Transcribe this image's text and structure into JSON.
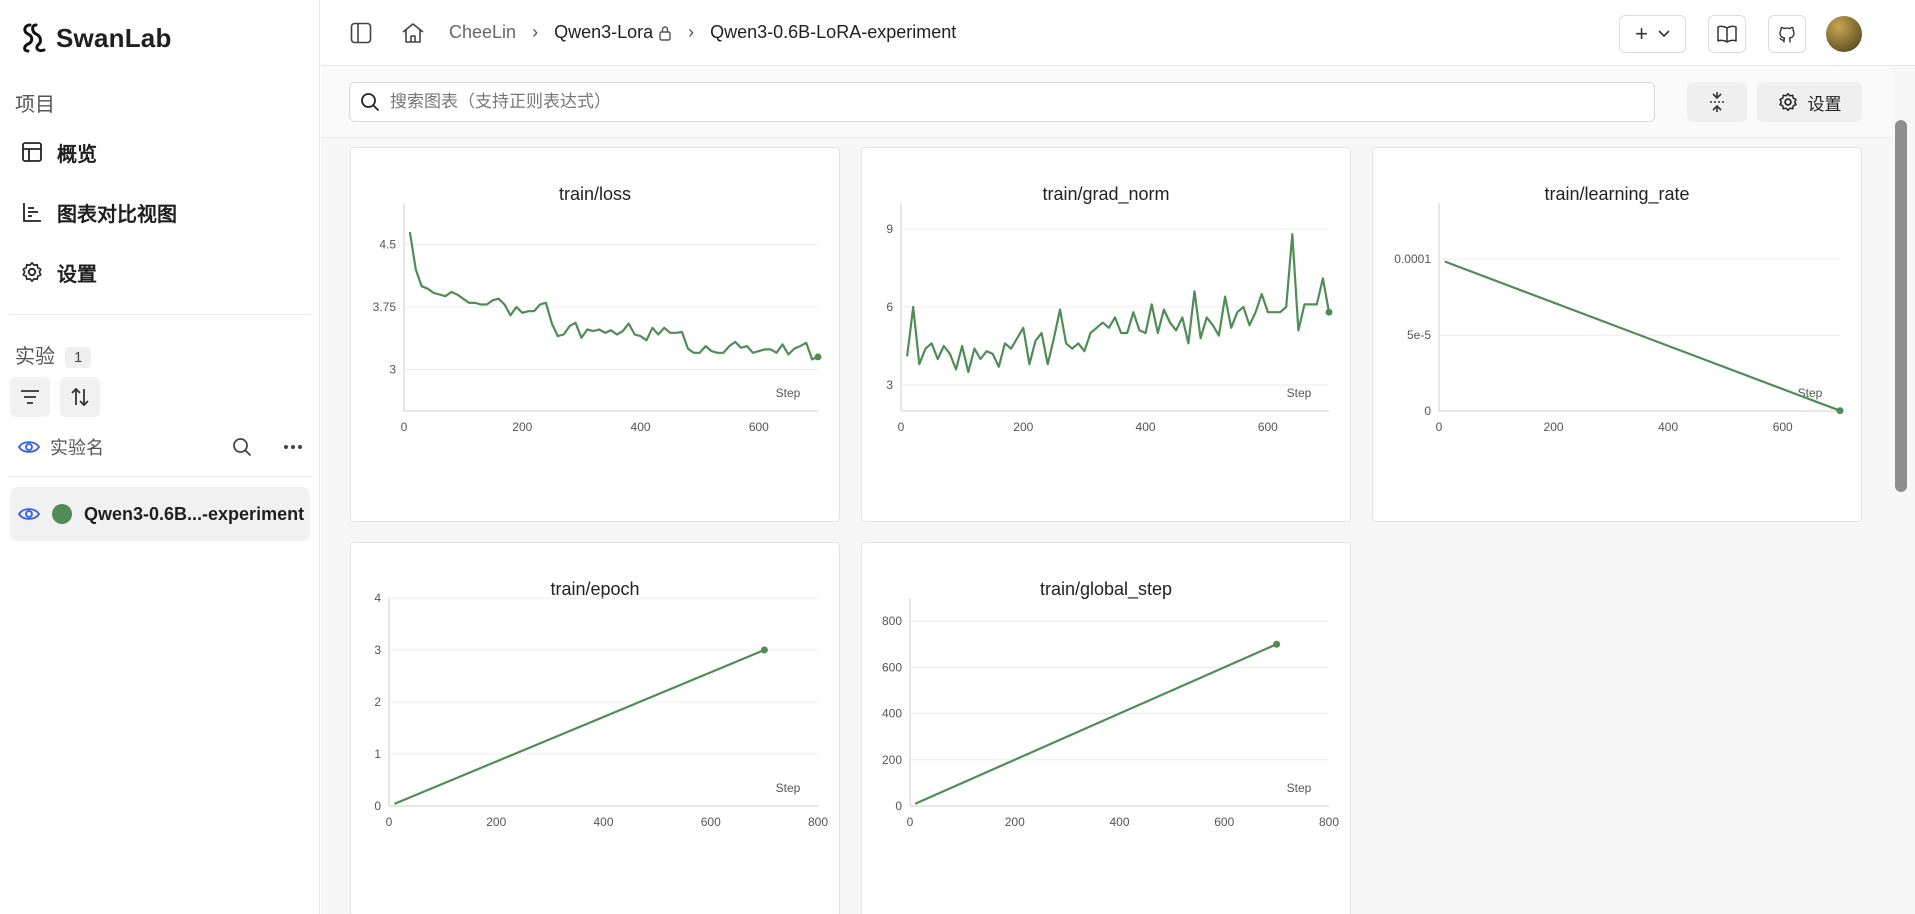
{
  "app": {
    "name": "SwanLab"
  },
  "sidebar": {
    "section_project": "项目",
    "nav": [
      {
        "label": "概览",
        "icon": "table-icon"
      },
      {
        "label": "图表对比视图",
        "icon": "chart-icon"
      },
      {
        "label": "设置",
        "icon": "gear-icon"
      }
    ],
    "experiments_label": "实验",
    "experiments_count": "1",
    "exp_column_label": "实验名",
    "experiment": {
      "name": "Qwen3-0.6B...-experiment",
      "color": "#4f8c56"
    }
  },
  "breadcrumb": {
    "user": "CheeLin",
    "project": "Qwen3-Lora",
    "experiment": "Qwen3-0.6B-LoRA-experiment"
  },
  "header": {
    "add_label": "+"
  },
  "toolbar": {
    "search_placeholder": "搜索图表（支持正则表达式）",
    "settings_label": "设置"
  },
  "colors": {
    "series": "#4f8c56",
    "accent": "#2f5ee8"
  },
  "chart_data": [
    {
      "type": "line",
      "title": "train/loss",
      "xlabel": "Step",
      "xlim": [
        0,
        700
      ],
      "ylim": [
        2.5,
        5.0
      ],
      "xticks": [
        0,
        200,
        400,
        600
      ],
      "yticks": [
        3,
        3.75,
        4.5
      ],
      "ytick_labels": [
        "3",
        "3.75",
        "4.5"
      ],
      "x": [
        10,
        20,
        30,
        40,
        50,
        60,
        70,
        80,
        90,
        100,
        110,
        120,
        130,
        140,
        150,
        160,
        170,
        180,
        190,
        200,
        210,
        220,
        230,
        240,
        250,
        260,
        270,
        280,
        290,
        300,
        310,
        320,
        330,
        340,
        350,
        360,
        370,
        380,
        390,
        400,
        410,
        420,
        430,
        440,
        450,
        460,
        470,
        480,
        490,
        500,
        510,
        520,
        530,
        540,
        550,
        560,
        570,
        580,
        590,
        600,
        610,
        620,
        630,
        640,
        650,
        660,
        670,
        680,
        690,
        700
      ],
      "values": [
        4.65,
        4.2,
        4.0,
        3.97,
        3.92,
        3.9,
        3.88,
        3.93,
        3.9,
        3.85,
        3.8,
        3.8,
        3.78,
        3.78,
        3.83,
        3.85,
        3.78,
        3.65,
        3.75,
        3.68,
        3.7,
        3.7,
        3.78,
        3.8,
        3.55,
        3.4,
        3.42,
        3.52,
        3.56,
        3.38,
        3.48,
        3.46,
        3.48,
        3.44,
        3.47,
        3.42,
        3.46,
        3.55,
        3.42,
        3.4,
        3.35,
        3.5,
        3.42,
        3.5,
        3.44,
        3.44,
        3.45,
        3.25,
        3.2,
        3.2,
        3.28,
        3.22,
        3.2,
        3.2,
        3.28,
        3.33,
        3.26,
        3.28,
        3.2,
        3.22,
        3.24,
        3.24,
        3.2,
        3.3,
        3.18,
        3.25,
        3.28,
        3.32,
        3.12,
        3.15
      ],
      "end_marker": [
        700,
        3.15
      ]
    },
    {
      "type": "line",
      "title": "train/grad_norm",
      "xlabel": "Step",
      "xlim": [
        0,
        700
      ],
      "ylim": [
        2,
        10
      ],
      "xticks": [
        0,
        200,
        400,
        600
      ],
      "yticks": [
        3,
        6,
        9
      ],
      "ytick_labels": [
        "3",
        "6",
        "9"
      ],
      "x": [
        10,
        20,
        30,
        40,
        50,
        60,
        70,
        80,
        90,
        100,
        110,
        120,
        130,
        140,
        150,
        160,
        170,
        180,
        190,
        200,
        210,
        220,
        230,
        240,
        250,
        260,
        270,
        280,
        290,
        300,
        310,
        320,
        330,
        340,
        350,
        360,
        370,
        380,
        390,
        400,
        410,
        420,
        430,
        440,
        450,
        460,
        470,
        480,
        490,
        500,
        510,
        520,
        530,
        540,
        550,
        560,
        570,
        580,
        590,
        600,
        610,
        620,
        630,
        640,
        650,
        660,
        670,
        680,
        690,
        700
      ],
      "values": [
        4.1,
        6.0,
        3.8,
        4.4,
        4.6,
        4.0,
        4.5,
        4.2,
        3.6,
        4.5,
        3.5,
        4.4,
        4.0,
        4.3,
        4.2,
        3.7,
        4.6,
        4.4,
        4.8,
        5.2,
        3.8,
        4.7,
        5.0,
        3.8,
        4.8,
        5.9,
        4.6,
        4.4,
        4.6,
        4.3,
        5.0,
        5.2,
        5.4,
        5.2,
        5.6,
        5.0,
        5.0,
        5.8,
        5.1,
        5.0,
        6.1,
        5.0,
        5.9,
        5.4,
        5.1,
        5.6,
        4.6,
        6.6,
        4.8,
        5.6,
        5.3,
        4.9,
        6.4,
        5.2,
        5.8,
        6.0,
        5.3,
        5.8,
        6.5,
        5.8,
        5.8,
        5.8,
        6.0,
        8.8,
        5.1,
        6.1,
        6.1,
        6.1,
        7.1,
        5.8
      ],
      "end_marker": [
        700,
        5.8
      ]
    },
    {
      "type": "line",
      "title": "train/learning_rate",
      "xlabel": "Step",
      "xlim": [
        0,
        700
      ],
      "ylim": [
        0,
        0.000137
      ],
      "xticks": [
        0,
        200,
        400,
        600
      ],
      "yticks": [
        0,
        5e-05,
        0.0001
      ],
      "ytick_labels": [
        "0",
        "5e-5",
        "0.0001"
      ],
      "x": [
        10,
        700
      ],
      "values": [
        9.85e-05,
        2e-07
      ],
      "end_marker": [
        700,
        2e-07
      ]
    },
    {
      "type": "line",
      "title": "train/epoch",
      "xlabel": "Step",
      "xlim": [
        0,
        800
      ],
      "ylim": [
        0,
        4
      ],
      "xticks": [
        0,
        200,
        400,
        600,
        800
      ],
      "yticks": [
        0,
        1,
        2,
        3,
        4
      ],
      "ytick_labels": [
        "0",
        "1",
        "2",
        "3",
        "4"
      ],
      "x": [
        10,
        700
      ],
      "values": [
        0.04,
        3.0
      ],
      "end_marker": [
        700,
        3.0
      ]
    },
    {
      "type": "line",
      "title": "train/global_step",
      "xlabel": "Step",
      "xlim": [
        0,
        800
      ],
      "ylim": [
        0,
        900
      ],
      "xticks": [
        0,
        200,
        400,
        600,
        800
      ],
      "yticks": [
        0,
        200,
        400,
        600,
        800
      ],
      "ytick_labels": [
        "0",
        "200",
        "400",
        "600",
        "800"
      ],
      "x": [
        10,
        700
      ],
      "values": [
        10,
        700
      ],
      "end_marker": [
        700,
        700
      ]
    }
  ]
}
